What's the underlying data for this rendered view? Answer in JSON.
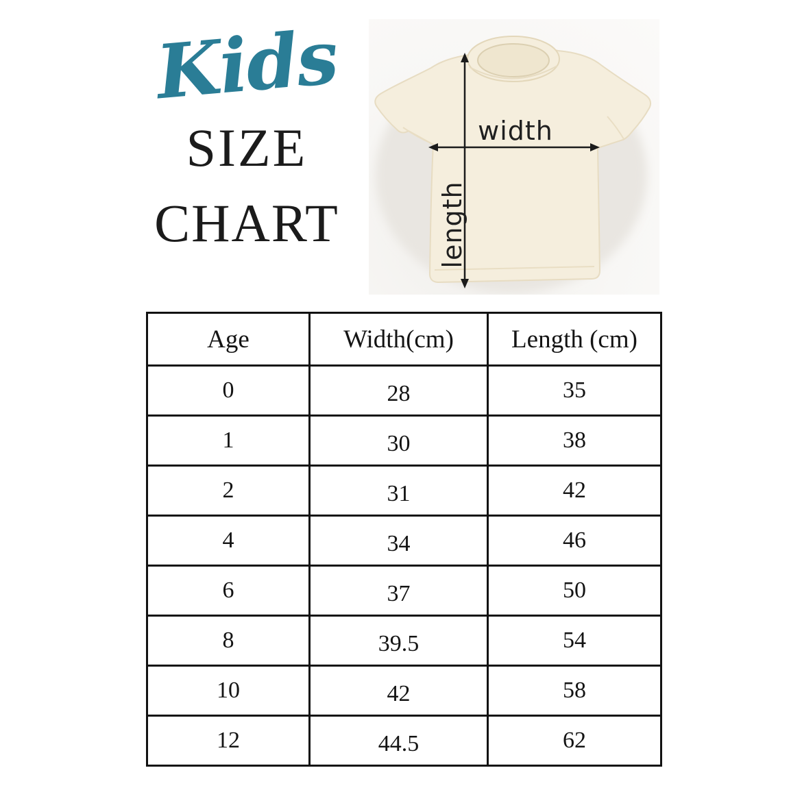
{
  "title": {
    "script": "Kids",
    "line1": "SIZE",
    "line2": "CHART"
  },
  "diagram": {
    "width_label": "width",
    "length_label": "length"
  },
  "colors": {
    "accent_teal": "#2a7d96",
    "text_black": "#141414",
    "shirt_cream": "#f5eedd",
    "photo_background": "#f7f6f4"
  },
  "chart_data": {
    "type": "table",
    "title": "Kids SIZE CHART",
    "columns": [
      "Age",
      "Width(cm)",
      "Length (cm)"
    ],
    "rows": [
      [
        "0",
        "28",
        "35"
      ],
      [
        "1",
        "30",
        "38"
      ],
      [
        "2",
        "31",
        "42"
      ],
      [
        "4",
        "34",
        "46"
      ],
      [
        "6",
        "37",
        "50"
      ],
      [
        "8",
        "39.5",
        "54"
      ],
      [
        "10",
        "42",
        "58"
      ],
      [
        "12",
        "44.5",
        "62"
      ]
    ]
  }
}
